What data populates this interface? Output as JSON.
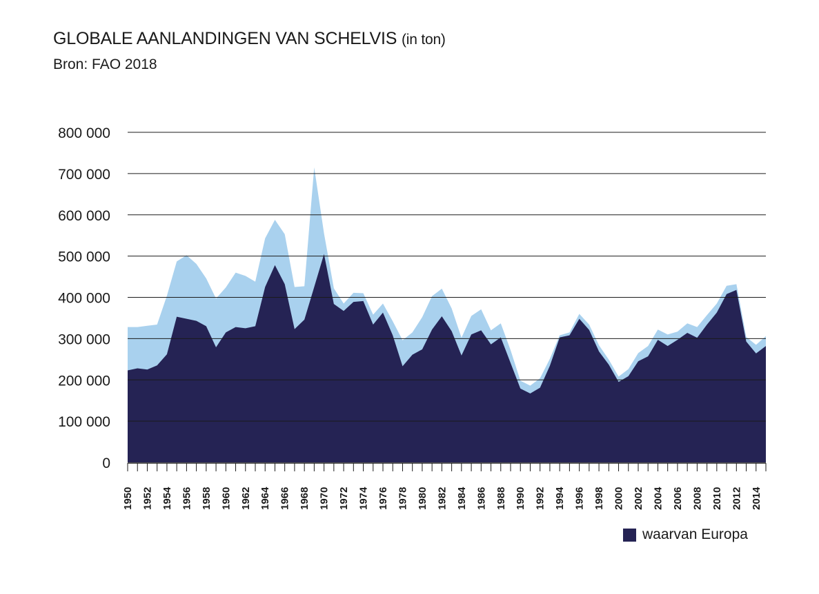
{
  "title": "GLOBALE AANLANDINGEN VAN SCHELVIS",
  "title_unit": "(in ton)",
  "subtitle": "Bron: FAO 2018",
  "colors": {
    "total": "#a9d1ee",
    "europe": "#252354",
    "grid": "#1a1a1a"
  },
  "chart_data": {
    "type": "area",
    "title": "GLOBALE AANLANDINGEN VAN SCHELVIS (in ton)",
    "subtitle": "Bron: FAO 2018",
    "xlabel": "",
    "ylabel": "",
    "ylim": [
      0,
      800000
    ],
    "yticks": [
      0,
      100000,
      200000,
      300000,
      400000,
      500000,
      600000,
      700000,
      800000
    ],
    "ytick_labels": [
      "0",
      "100 000",
      "200 000",
      "300 000",
      "400 000",
      "500 000",
      "600 000",
      "700 000",
      "800 000"
    ],
    "xlim": [
      1950,
      2015
    ],
    "xtick_labels": [
      "1950",
      "1952",
      "1954",
      "1956",
      "1958",
      "1960",
      "1962",
      "1964",
      "1966",
      "1968",
      "1970",
      "1972",
      "1974",
      "1976",
      "1978",
      "1980",
      "1982",
      "1984",
      "1986",
      "1988",
      "1990",
      "1992",
      "1994",
      "1996",
      "1998",
      "2000",
      "2002",
      "2004",
      "2006",
      "2008",
      "2010",
      "2012",
      "2014"
    ],
    "grid": "horizontal",
    "legend": {
      "position": "bottom-right",
      "entries": [
        "waarvan Europa"
      ]
    },
    "x": [
      1950,
      1951,
      1952,
      1953,
      1954,
      1955,
      1956,
      1957,
      1958,
      1959,
      1960,
      1961,
      1962,
      1963,
      1964,
      1965,
      1966,
      1967,
      1968,
      1969,
      1970,
      1971,
      1972,
      1973,
      1974,
      1975,
      1976,
      1977,
      1978,
      1979,
      1980,
      1981,
      1982,
      1983,
      1984,
      1985,
      1986,
      1987,
      1988,
      1989,
      1990,
      1991,
      1992,
      1993,
      1994,
      1995,
      1996,
      1997,
      1998,
      1999,
      2000,
      2001,
      2002,
      2003,
      2004,
      2005,
      2006,
      2007,
      2008,
      2009,
      2010,
      2011,
      2012,
      2013,
      2014,
      2015
    ],
    "series": [
      {
        "values": [
          328000,
          328000,
          331000,
          334000,
          404000,
          487000,
          502000,
          481000,
          446000,
          397000,
          424000,
          460000,
          452000,
          438000,
          543000,
          588000,
          553000,
          425000,
          427000,
          715000,
          555000,
          422000,
          385000,
          411000,
          410000,
          358000,
          385000,
          342000,
          296000,
          315000,
          352000,
          403000,
          421000,
          373000,
          302000,
          355000,
          371000,
          320000,
          337000,
          272000,
          198000,
          186000,
          204000,
          251000,
          308000,
          315000,
          360000,
          334000,
          284000,
          249000,
          208000,
          226000,
          265000,
          282000,
          322000,
          310000,
          317000,
          337000,
          328000,
          357000,
          385000,
          428000,
          432000,
          304000,
          285000,
          306000
        ]
      },
      {
        "name": "waarvan Europa",
        "values": [
          223000,
          228000,
          225000,
          235000,
          262000,
          353000,
          348000,
          343000,
          330000,
          279000,
          315000,
          328000,
          325000,
          330000,
          425000,
          478000,
          432000,
          323000,
          346000,
          425000,
          505000,
          384000,
          367000,
          389000,
          391000,
          334000,
          363000,
          308000,
          233000,
          261000,
          274000,
          322000,
          354000,
          318000,
          259000,
          310000,
          320000,
          286000,
          303000,
          241000,
          179000,
          167000,
          181000,
          234000,
          303000,
          308000,
          348000,
          321000,
          269000,
          237000,
          195000,
          209000,
          245000,
          257000,
          297000,
          282000,
          297000,
          314000,
          302000,
          334000,
          363000,
          408000,
          418000,
          293000,
          264000,
          282000
        ]
      }
    ]
  }
}
